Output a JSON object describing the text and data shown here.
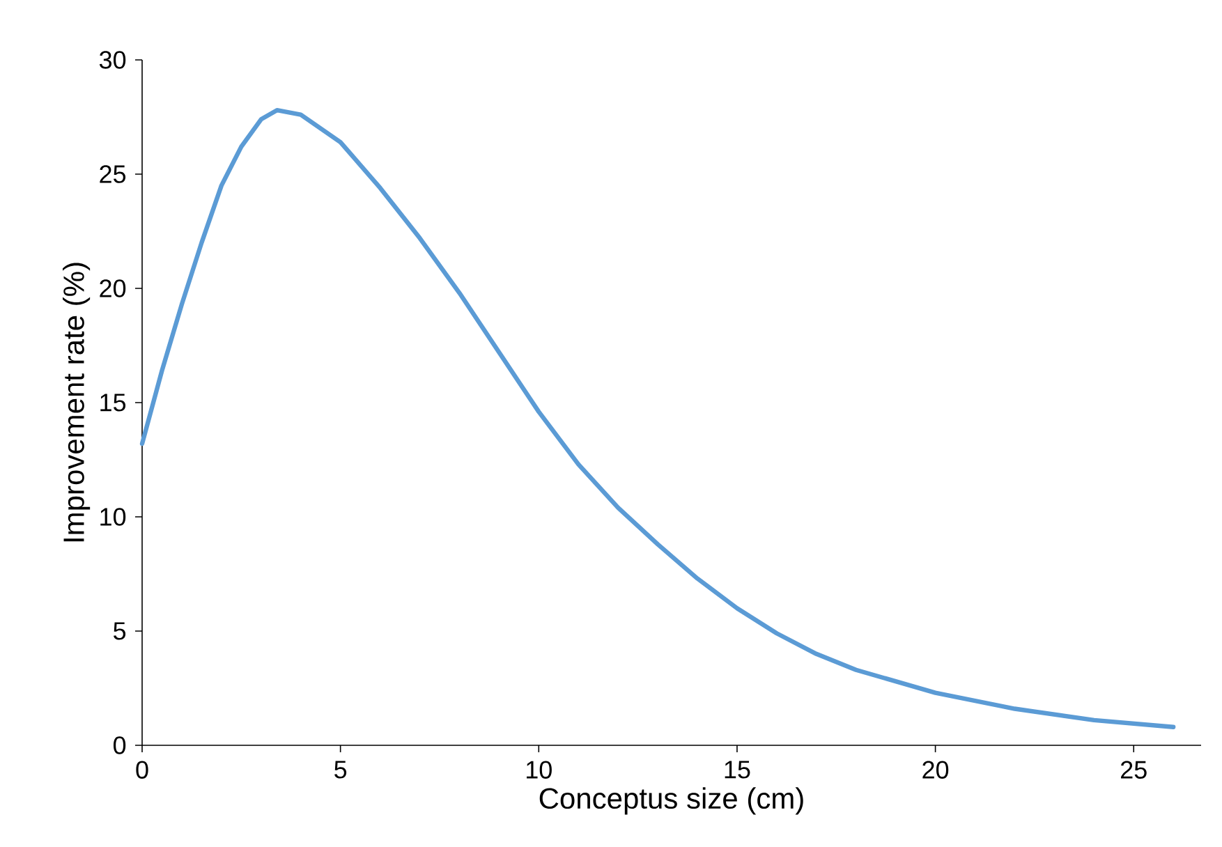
{
  "chart_data": {
    "type": "line",
    "xlabel": "Conceptus size (cm)",
    "ylabel": "Improvement rate (%)",
    "x": [
      0,
      0.5,
      1,
      1.5,
      2,
      2.5,
      3,
      3.4,
      4,
      5,
      6,
      7,
      8,
      9,
      10,
      11,
      12,
      13,
      14,
      15,
      16,
      17,
      18,
      20,
      22,
      24,
      26
    ],
    "series": [
      {
        "color": "#5b9bd5",
        "values": [
          13.2,
          16.4,
          19.3,
          22.0,
          24.5,
          26.2,
          27.4,
          27.8,
          27.6,
          26.4,
          24.4,
          22.2,
          19.8,
          17.2,
          14.6,
          12.3,
          10.4,
          8.8,
          7.3,
          6.0,
          4.9,
          4.0,
          3.3,
          2.3,
          1.6,
          1.1,
          0.8
        ]
      }
    ],
    "xlim": [
      0,
      26.7
    ],
    "ylim": [
      0,
      30
    ],
    "xticks": [
      0,
      5,
      10,
      15,
      20,
      25
    ],
    "yticks": [
      0,
      5,
      10,
      15,
      20,
      25,
      30
    ],
    "marker": "none",
    "line_style": "solid"
  }
}
